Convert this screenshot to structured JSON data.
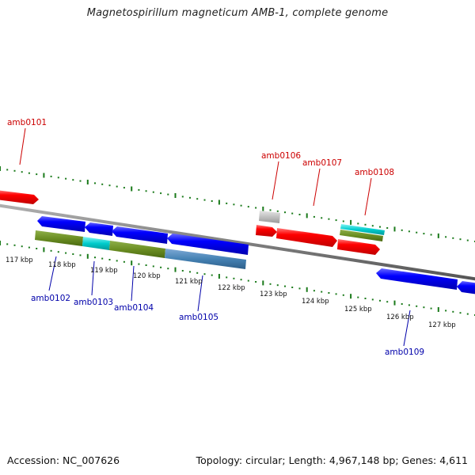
{
  "title": "Magnetospirillum magneticum AMB-1, complete genome",
  "footer": {
    "accession": "Accession: NC_007626",
    "summary": "Topology: circular; Length: 4,967,148 bp; Genes: 4,611"
  },
  "ticks": [
    {
      "label": "117 kbp"
    },
    {
      "label": "118 kbp"
    },
    {
      "label": "119 kbp"
    },
    {
      "label": "120 kbp"
    },
    {
      "label": "121 kbp"
    },
    {
      "label": "122 kbp"
    },
    {
      "label": "123 kbp"
    },
    {
      "label": "124 kbp"
    },
    {
      "label": "125 kbp"
    },
    {
      "label": "126 kbp"
    },
    {
      "label": "127 kbp"
    }
  ],
  "gene_labels": [
    {
      "name": "amb0101",
      "strand": "forward"
    },
    {
      "name": "amb0102",
      "strand": "reverse"
    },
    {
      "name": "amb0103",
      "strand": "reverse"
    },
    {
      "name": "amb0104",
      "strand": "reverse"
    },
    {
      "name": "amb0105",
      "strand": "reverse"
    },
    {
      "name": "amb0106",
      "strand": "forward"
    },
    {
      "name": "amb0107",
      "strand": "forward"
    },
    {
      "name": "amb0108",
      "strand": "forward"
    },
    {
      "name": "amb0109",
      "strand": "reverse"
    }
  ],
  "colors": {
    "forward_gene": "#ff0000",
    "reverse_gene": "#0000ff",
    "forward_label": "#cc0000",
    "reverse_label": "#0000aa",
    "backbone": "#7f7f7f",
    "gc_skew": "#1a7a1a",
    "domain_olive": "#6b8e23",
    "domain_cyan": "#00cccc",
    "domain_steel": "#4682b4",
    "pseudo": "#c0c0c0"
  }
}
